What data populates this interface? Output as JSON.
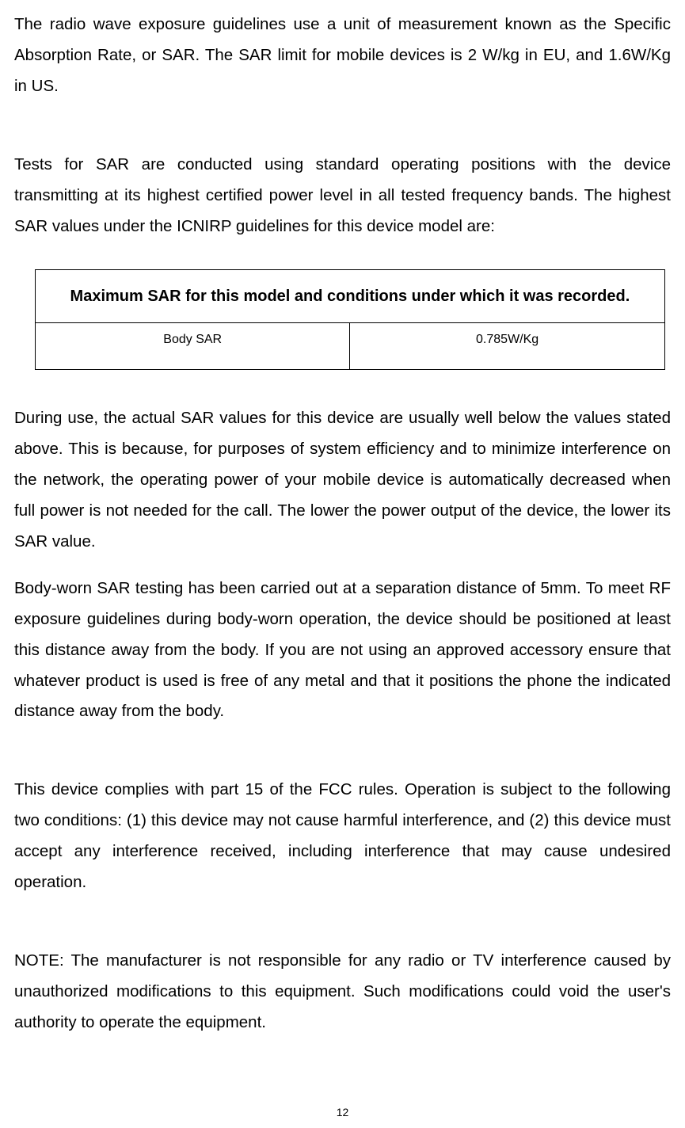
{
  "paragraphs": {
    "p1": "The radio wave exposure guidelines use a unit of measurement known as the Specific Absorption Rate, or SAR. The SAR limit for mobile devices is 2 W/kg in EU, and 1.6W/Kg in US.",
    "p2": "Tests for SAR are conducted using standard operating positions with the device transmitting at its highest certified power level in all tested frequency bands. The highest SAR values under the ICNIRP guidelines for this device model are:",
    "p3": "During use, the actual SAR values for this device are usually well below the values stated above. This is because, for purposes of system efficiency and to minimize interference on the network, the operating power of your mobile device is automatically decreased when full power is not needed for the call. The lower the power output of the device, the lower its SAR value.",
    "p4": "Body-worn SAR testing has been carried out at a separation distance of 5mm. To meet RF exposure guidelines during body-worn operation, the device should be positioned at least this distance away from the body.  If you are not using an approved accessory ensure that whatever product is used is free of any metal and that it positions the phone the indicated distance away from the body.",
    "p5": "This device complies with part 15 of the FCC rules. Operation is subject to the following two conditions: (1) this device may not cause harmful interference, and (2) this device must accept any interference received, including interference that may cause undesired operation.",
    "p6": "NOTE: The manufacturer is not responsible for any radio or TV interference caused by unauthorized modifications to this equipment. Such modifications could void the user's authority to operate the equipment."
  },
  "table": {
    "header": "Maximum SAR for this model and conditions under which it was recorded.",
    "row1_label": "Body SAR",
    "row1_value": "0.785W/Kg"
  },
  "page_number": "12",
  "styling": {
    "body_font_size": 20.5,
    "body_line_height": 1.9,
    "table_header_font_size": 20,
    "table_cell_font_size": 16,
    "page_num_font_size": 14,
    "text_color": "#000000",
    "background_color": "#ffffff",
    "border_color": "#000000"
  }
}
